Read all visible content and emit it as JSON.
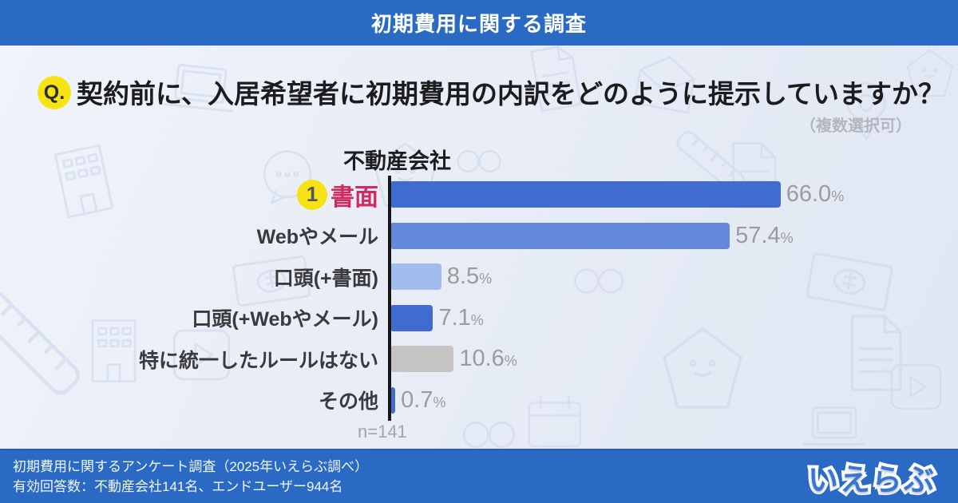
{
  "banner": {
    "title": "初期費用に関する調査"
  },
  "question": {
    "badge": "Q.",
    "text": "契約前に、入居希望者に初期費用の内訳をどのように提示していますか？",
    "note": "（複数選択可）"
  },
  "chart_data": {
    "type": "bar",
    "orientation": "horizontal",
    "group_label": "不動産会社",
    "categories": [
      "書面",
      "Webやメール",
      "口頭(+書面)",
      "口頭(+Webやメール)",
      "特に統一したルールはない",
      "その他"
    ],
    "values": [
      66.0,
      57.4,
      8.5,
      7.1,
      10.6,
      0.7
    ],
    "value_labels": [
      "66.0",
      "57.4",
      "8.5",
      "7.1",
      "10.6",
      "0.7"
    ],
    "unit": "%",
    "xlim": [
      0,
      100
    ],
    "bar_colors": [
      "#3f6cce",
      "#6589da",
      "#a2bcee",
      "#3f6cce",
      "#c6c4c2",
      "#3f6cce"
    ],
    "highlight": {
      "index": 0,
      "rank": "1",
      "label_color": "#d2295f",
      "badge_color": "#f5e316"
    },
    "sample_size": "n=141",
    "legend_position": "none",
    "grid": false
  },
  "footer": {
    "line1": "初期費用に関するアンケート調査（2025年いえらぶ調べ）",
    "line2": "有効回答数：不動産会社141名、エンドユーザー944名",
    "logo": "いえらぶ"
  },
  "colors": {
    "banner_blue": "#2a6ac4",
    "background": "#e9edf6",
    "axis_black": "#17171a",
    "value_gray": "#9b9b9b",
    "accent_yellow": "#f5e316"
  },
  "background": {
    "watermark_icons": [
      "laptop-icon",
      "envelope-icon",
      "building-icon",
      "calendar-icon",
      "banknote-icon",
      "ruler-icon",
      "document-icon",
      "speech-bubble-icon",
      "house-mascot-icon",
      "play-button-icon",
      "infinity-icon",
      "map-pin-icon"
    ]
  }
}
